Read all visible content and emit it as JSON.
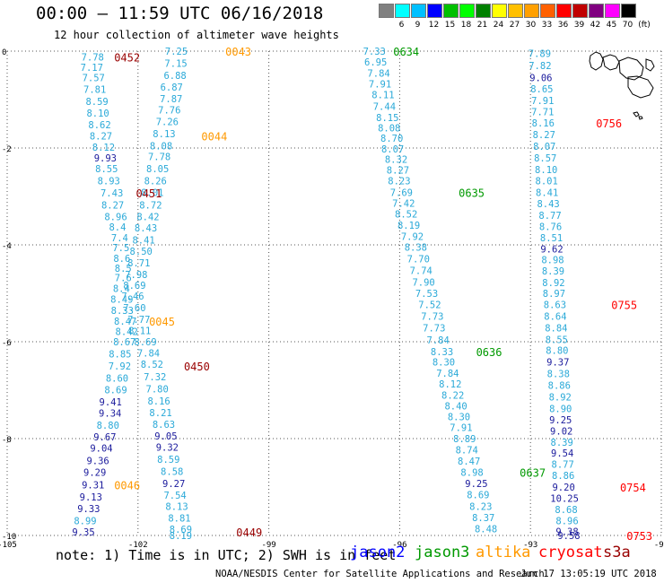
{
  "header": {
    "title": "00:00 – 11:59 UTC 06/16/2018",
    "subtitle": "12 hour collection of altimeter wave heights"
  },
  "colorbar": {
    "unit": "(ft)",
    "labels": [
      "3",
      "6",
      "9",
      "12",
      "15",
      "18",
      "21",
      "24",
      "27",
      "30",
      "33",
      "36",
      "39",
      "42",
      "45",
      "70"
    ],
    "colors": [
      "#808080",
      "#00ffff",
      "#00c0ff",
      "#0000ff",
      "#00c000",
      "#00ff00",
      "#008000",
      "#ffff00",
      "#ffc000",
      "#ffa000",
      "#ff6000",
      "#ff0000",
      "#c00000",
      "#800080",
      "#ff00ff",
      "#000000"
    ]
  },
  "note": "note: 1) Time is in UTC; 2) SWH is in feet",
  "legend": [
    {
      "name": "jason2",
      "color": "#0000ff"
    },
    {
      "name": "jason3",
      "color": "#009900"
    },
    {
      "name": "altika",
      "color": "#ff9900"
    },
    {
      "name": "cryosat",
      "color": "#ff0000"
    },
    {
      "name": "s3a",
      "color": "#990000"
    }
  ],
  "credit": "NOAA/NESDIS Center for Satellite Applications and Research",
  "timestamp": "Jun 17 13:05:19 UTC 2018",
  "chart_data": {
    "type": "scatter",
    "title": "00:00 – 11:59 UTC 06/16/2018",
    "subtitle": "12 hour collection of altimeter wave heights",
    "xlabel": "",
    "ylabel": "",
    "xlim": [
      -105,
      -90
    ],
    "ylim": [
      -10,
      0
    ],
    "x_ticks": [
      -105,
      -102,
      -99,
      -96,
      -93,
      -90
    ],
    "y_ticks": [
      0,
      -2,
      -4,
      -6,
      -8,
      -10
    ],
    "x_tick_labels": [
      "-105",
      "-102",
      "-99",
      "-96",
      "-93",
      "-90"
    ],
    "y_tick_labels": [
      "0",
      "-2",
      "-4",
      "-6",
      "-8",
      "-10"
    ],
    "grid": true,
    "colors": {
      "swh_dark": "#1a1a9c",
      "swh_light": "#2aa9d8",
      "jason2": "#0000ff",
      "jason3": "#009900",
      "altika": "#ff9900",
      "cryosat": "#ff0000",
      "s3a": "#990000"
    },
    "tracks": [
      {
        "name": "s3a pass A",
        "points": [
          [
            -103.04,
            -0.12,
            "7.78"
          ],
          [
            -103.06,
            -0.33,
            "7.17"
          ],
          [
            -103.02,
            -0.55,
            "7.57"
          ],
          [
            -102.99,
            -0.79,
            "7.81"
          ],
          [
            -102.94,
            -1.04,
            "8.59"
          ],
          [
            -102.92,
            -1.28,
            "8.10"
          ],
          [
            -102.88,
            -1.52,
            "8.62"
          ],
          [
            -102.85,
            -1.75,
            "8.27"
          ],
          [
            -102.79,
            -1.98,
            "8.12"
          ],
          [
            -102.75,
            -2.2,
            "9.93"
          ],
          [
            -102.72,
            -2.43,
            "8.55"
          ],
          [
            -102.67,
            -2.68,
            "8.93"
          ],
          [
            -102.6,
            -2.93,
            "7.43"
          ],
          [
            -102.58,
            -3.18,
            "8.27"
          ],
          [
            -102.51,
            -3.42,
            "8.96"
          ],
          [
            -102.47,
            -3.63,
            "8.4"
          ],
          [
            -102.42,
            -3.85,
            "7.4"
          ],
          [
            -102.39,
            -4.06,
            "7.5"
          ],
          [
            -102.37,
            -4.28,
            "8.6"
          ],
          [
            -102.34,
            -4.48,
            "8.5"
          ],
          [
            -102.34,
            -4.68,
            "7.6"
          ],
          [
            -102.38,
            -4.9,
            "8.4"
          ],
          [
            -102.37,
            -5.12,
            "8.49"
          ],
          [
            -102.36,
            -5.35,
            "8.33"
          ],
          [
            -102.29,
            -5.57,
            "8.47"
          ],
          [
            -102.26,
            -5.79,
            "8.42"
          ],
          [
            -102.31,
            -6.0,
            "8.67"
          ],
          [
            -102.41,
            -6.25,
            "8.85"
          ],
          [
            -102.42,
            -6.5,
            "7.92"
          ],
          [
            -102.48,
            -6.75,
            "8.60"
          ],
          [
            -102.51,
            -6.99,
            "8.69"
          ],
          [
            -102.63,
            -7.24,
            "9.41"
          ],
          [
            -102.64,
            -7.47,
            "9.34"
          ],
          [
            -102.69,
            -7.72,
            "8.80"
          ],
          [
            -102.76,
            -7.96,
            "9.67"
          ],
          [
            -102.84,
            -8.19,
            "9.04"
          ],
          [
            -102.92,
            -8.45,
            "9.36"
          ],
          [
            -102.99,
            -8.69,
            "9.29"
          ],
          [
            -103.03,
            -8.95,
            "9.31"
          ],
          [
            -103.08,
            -9.2,
            "9.13"
          ],
          [
            -103.13,
            -9.44,
            "9.33"
          ],
          [
            -103.21,
            -9.69,
            "8.99"
          ],
          [
            -103.25,
            -9.93,
            "9.35"
          ]
        ]
      },
      {
        "name": "s3a pass B",
        "points": [
          [
            -101.12,
            0.0,
            "7.25"
          ],
          [
            -101.13,
            -0.25,
            "7.15"
          ],
          [
            -101.15,
            -0.5,
            "6.88"
          ],
          [
            -101.23,
            -0.74,
            "6.87"
          ],
          [
            -101.24,
            -0.98,
            "7.87"
          ],
          [
            -101.28,
            -1.21,
            "7.76"
          ],
          [
            -101.33,
            -1.45,
            "7.26"
          ],
          [
            -101.4,
            -1.7,
            "8.13"
          ],
          [
            -101.47,
            -1.95,
            "8.08"
          ],
          [
            -101.51,
            -2.18,
            "7.78"
          ],
          [
            -101.55,
            -2.43,
            "8.05"
          ],
          [
            -101.6,
            -2.68,
            "8.26"
          ],
          [
            -101.67,
            -2.92,
            "8.01"
          ],
          [
            -101.71,
            -3.18,
            "8.72"
          ],
          [
            -101.77,
            -3.42,
            "8.42"
          ],
          [
            -101.82,
            -3.65,
            "8.43"
          ],
          [
            -101.87,
            -3.9,
            "8.41"
          ],
          [
            -101.93,
            -4.13,
            "8.50"
          ],
          [
            -101.98,
            -4.37,
            "8.71"
          ],
          [
            -102.04,
            -4.61,
            "7.98"
          ],
          [
            -102.08,
            -4.83,
            "8.69"
          ],
          [
            -102.12,
            -5.06,
            "7.46"
          ],
          [
            -102.08,
            -5.3,
            "7.60"
          ],
          [
            -101.98,
            -5.54,
            "7.77"
          ],
          [
            -101.96,
            -5.77,
            "8.11"
          ],
          [
            -101.83,
            -6.0,
            "8.69"
          ],
          [
            -101.76,
            -6.23,
            "7.84"
          ],
          [
            -101.68,
            -6.46,
            "8.52"
          ],
          [
            -101.61,
            -6.72,
            "7.32"
          ],
          [
            -101.56,
            -6.97,
            "7.80"
          ],
          [
            -101.52,
            -7.22,
            "8.16"
          ],
          [
            -101.48,
            -7.46,
            "8.21"
          ],
          [
            -101.41,
            -7.7,
            "8.63"
          ],
          [
            -101.36,
            -7.94,
            "9.05"
          ],
          [
            -101.33,
            -8.18,
            "9.32"
          ],
          [
            -101.3,
            -8.43,
            "8.59"
          ],
          [
            -101.22,
            -8.68,
            "8.58"
          ],
          [
            -101.18,
            -8.93,
            "9.27"
          ],
          [
            -101.15,
            -9.17,
            "7.54"
          ],
          [
            -101.11,
            -9.4,
            "8.13"
          ],
          [
            -101.05,
            -9.64,
            "8.81"
          ],
          [
            -101.02,
            -9.87,
            "8.69"
          ],
          [
            -101.02,
            -10.0,
            "8.19"
          ]
        ]
      },
      {
        "name": "jason3 pass",
        "points": [
          [
            -96.58,
            0.0,
            "7.33"
          ],
          [
            -96.55,
            -0.22,
            "6.95"
          ],
          [
            -96.48,
            -0.45,
            "7.84"
          ],
          [
            -96.45,
            -0.68,
            "7.91"
          ],
          [
            -96.38,
            -0.9,
            "8.11"
          ],
          [
            -96.35,
            -1.14,
            "7.44"
          ],
          [
            -96.28,
            -1.37,
            "8.15"
          ],
          [
            -96.24,
            -1.58,
            "8.08"
          ],
          [
            -96.18,
            -1.8,
            "8.70"
          ],
          [
            -96.16,
            -2.02,
            "8.07"
          ],
          [
            -96.08,
            -2.23,
            "8.32"
          ],
          [
            -96.04,
            -2.45,
            "8.27"
          ],
          [
            -96.01,
            -2.68,
            "8.23"
          ],
          [
            -95.96,
            -2.92,
            "7.69"
          ],
          [
            -95.91,
            -3.14,
            "7.42"
          ],
          [
            -95.85,
            -3.36,
            "8.52"
          ],
          [
            -95.79,
            -3.59,
            "8.19"
          ],
          [
            -95.71,
            -3.82,
            "7.92"
          ],
          [
            -95.63,
            -4.05,
            "8.38"
          ],
          [
            -95.57,
            -4.29,
            "7.70"
          ],
          [
            -95.51,
            -4.53,
            "7.74"
          ],
          [
            -95.45,
            -4.77,
            "7.90"
          ],
          [
            -95.38,
            -5.0,
            "7.53"
          ],
          [
            -95.31,
            -5.23,
            "7.52"
          ],
          [
            -95.25,
            -5.47,
            "7.73"
          ],
          [
            -95.21,
            -5.71,
            "7.73"
          ],
          [
            -95.12,
            -5.96,
            "7.84"
          ],
          [
            -95.03,
            -6.2,
            "8.33"
          ],
          [
            -94.99,
            -6.42,
            "8.30"
          ],
          [
            -94.9,
            -6.65,
            "7.84"
          ],
          [
            -94.84,
            -6.87,
            "8.12"
          ],
          [
            -94.78,
            -7.1,
            "8.22"
          ],
          [
            -94.71,
            -7.32,
            "8.40"
          ],
          [
            -94.64,
            -7.55,
            "8.30"
          ],
          [
            -94.59,
            -7.77,
            "7.91"
          ],
          [
            -94.51,
            -8.0,
            "8.89"
          ],
          [
            -94.46,
            -8.23,
            "8.74"
          ],
          [
            -94.41,
            -8.46,
            "8.47"
          ],
          [
            -94.34,
            -8.69,
            "8.98"
          ],
          [
            -94.24,
            -8.93,
            "9.25"
          ],
          [
            -94.2,
            -9.16,
            "8.69"
          ],
          [
            -94.14,
            -9.4,
            "8.23"
          ],
          [
            -94.08,
            -9.63,
            "8.37"
          ],
          [
            -94.02,
            -9.86,
            "8.48"
          ]
        ]
      },
      {
        "name": "cryosat pass",
        "points": [
          [
            -92.79,
            -0.05,
            "7.89"
          ],
          [
            -92.78,
            -0.3,
            "7.82"
          ],
          [
            -92.76,
            -0.55,
            "9.06"
          ],
          [
            -92.74,
            -0.78,
            "8.65"
          ],
          [
            -92.72,
            -1.02,
            "7.91"
          ],
          [
            -92.72,
            -1.25,
            "7.71"
          ],
          [
            -92.71,
            -1.48,
            "8.16"
          ],
          [
            -92.69,
            -1.72,
            "8.27"
          ],
          [
            -92.68,
            -1.96,
            "8.07"
          ],
          [
            -92.66,
            -2.2,
            "8.57"
          ],
          [
            -92.64,
            -2.44,
            "8.10"
          ],
          [
            -92.63,
            -2.68,
            "8.01"
          ],
          [
            -92.62,
            -2.92,
            "8.41"
          ],
          [
            -92.59,
            -3.15,
            "8.43"
          ],
          [
            -92.55,
            -3.39,
            "8.77"
          ],
          [
            -92.54,
            -3.62,
            "8.76"
          ],
          [
            -92.52,
            -3.85,
            "8.51"
          ],
          [
            -92.51,
            -4.08,
            "9.62"
          ],
          [
            -92.49,
            -4.31,
            "8.98"
          ],
          [
            -92.48,
            -4.54,
            "8.39"
          ],
          [
            -92.47,
            -4.78,
            "8.92"
          ],
          [
            -92.46,
            -5.0,
            "8.97"
          ],
          [
            -92.44,
            -5.23,
            "8.63"
          ],
          [
            -92.43,
            -5.47,
            "8.64"
          ],
          [
            -92.41,
            -5.71,
            "8.84"
          ],
          [
            -92.4,
            -5.95,
            "8.55"
          ],
          [
            -92.39,
            -6.18,
            "8.80"
          ],
          [
            -92.37,
            -6.42,
            "9.37"
          ],
          [
            -92.36,
            -6.66,
            "8.38"
          ],
          [
            -92.34,
            -6.9,
            "8.86"
          ],
          [
            -92.32,
            -7.14,
            "8.92"
          ],
          [
            -92.31,
            -7.38,
            "8.90"
          ],
          [
            -92.31,
            -7.61,
            "9.25"
          ],
          [
            -92.29,
            -7.84,
            "9.02"
          ],
          [
            -92.28,
            -8.07,
            "8.39"
          ],
          [
            -92.27,
            -8.3,
            "9.54"
          ],
          [
            -92.26,
            -8.53,
            "8.77"
          ],
          [
            -92.25,
            -8.76,
            "8.86"
          ],
          [
            -92.24,
            -9.0,
            "9.20"
          ],
          [
            -92.22,
            -9.23,
            "10.25"
          ],
          [
            -92.18,
            -9.46,
            "8.68"
          ],
          [
            -92.16,
            -9.69,
            "8.96"
          ],
          [
            -92.16,
            -9.92,
            "9.38"
          ],
          [
            -92.12,
            -10.0,
            "9.58"
          ]
        ]
      }
    ],
    "time_labels": [
      {
        "text": "0452",
        "x": -102.25,
        "y": -0.12,
        "color": "#990000"
      },
      {
        "text": "0043",
        "x": -99.7,
        "y": 0.0,
        "color": "#ff9900"
      },
      {
        "text": "0044",
        "x": -100.25,
        "y": -1.75,
        "color": "#ff9900"
      },
      {
        "text": "0451",
        "x": -101.75,
        "y": -2.93,
        "color": "#990000"
      },
      {
        "text": "0045",
        "x": -101.45,
        "y": -5.57,
        "color": "#ff9900"
      },
      {
        "text": "0450",
        "x": -100.65,
        "y": -6.5,
        "color": "#990000"
      },
      {
        "text": "0046",
        "x": -102.25,
        "y": -8.95,
        "color": "#ff9900"
      },
      {
        "text": "0449",
        "x": -99.45,
        "y": -9.93,
        "color": "#990000"
      },
      {
        "text": "0634",
        "x": -95.85,
        "y": 0.0,
        "color": "#009900"
      },
      {
        "text": "0635",
        "x": -94.35,
        "y": -2.92,
        "color": "#009900"
      },
      {
        "text": "0636",
        "x": -93.95,
        "y": -6.2,
        "color": "#009900"
      },
      {
        "text": "0637",
        "x": -92.95,
        "y": -8.69,
        "color": "#009900"
      },
      {
        "text": "0756",
        "x": -91.2,
        "y": -1.48,
        "color": "#ff0000"
      },
      {
        "text": "0755",
        "x": -90.85,
        "y": -5.23,
        "color": "#ff0000"
      },
      {
        "text": "0754",
        "x": -90.65,
        "y": -9.0,
        "color": "#ff0000"
      },
      {
        "text": "0753",
        "x": -90.5,
        "y": -10.0,
        "color": "#ff0000"
      }
    ]
  }
}
